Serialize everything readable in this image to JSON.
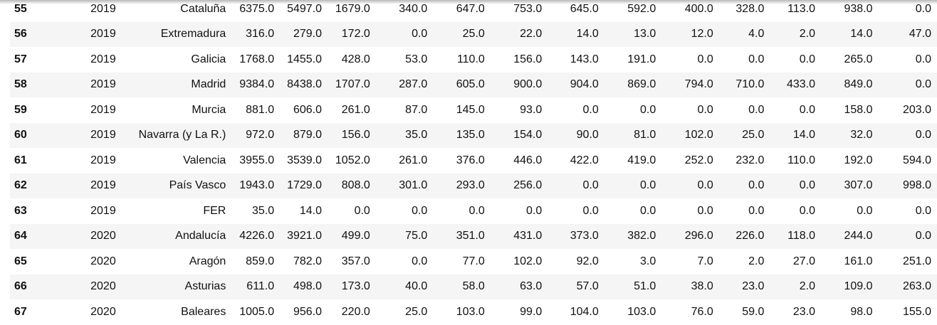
{
  "table": {
    "rows": [
      {
        "idx": "55",
        "cells": [
          "2019",
          "Cataluña",
          "6375.0",
          "5497.0",
          "1679.0",
          "340.0",
          "647.0",
          "753.0",
          "645.0",
          "592.0",
          "400.0",
          "328.0",
          "113.0",
          "938.0",
          "0.0"
        ]
      },
      {
        "idx": "56",
        "cells": [
          "2019",
          "Extremadura",
          "316.0",
          "279.0",
          "172.0",
          "0.0",
          "25.0",
          "22.0",
          "14.0",
          "13.0",
          "12.0",
          "4.0",
          "2.0",
          "14.0",
          "47.0"
        ]
      },
      {
        "idx": "57",
        "cells": [
          "2019",
          "Galicia",
          "1768.0",
          "1455.0",
          "428.0",
          "53.0",
          "110.0",
          "156.0",
          "143.0",
          "191.0",
          "0.0",
          "0.0",
          "0.0",
          "265.0",
          "0.0"
        ]
      },
      {
        "idx": "58",
        "cells": [
          "2019",
          "Madrid",
          "9384.0",
          "8438.0",
          "1707.0",
          "287.0",
          "605.0",
          "900.0",
          "904.0",
          "869.0",
          "794.0",
          "710.0",
          "433.0",
          "849.0",
          "0.0"
        ]
      },
      {
        "idx": "59",
        "cells": [
          "2019",
          "Murcia",
          "881.0",
          "606.0",
          "261.0",
          "87.0",
          "145.0",
          "93.0",
          "0.0",
          "0.0",
          "0.0",
          "0.0",
          "0.0",
          "158.0",
          "203.0"
        ]
      },
      {
        "idx": "60",
        "cells": [
          "2019",
          "Navarra (y La R.)",
          "972.0",
          "879.0",
          "156.0",
          "35.0",
          "135.0",
          "154.0",
          "90.0",
          "81.0",
          "102.0",
          "25.0",
          "14.0",
          "32.0",
          "0.0"
        ]
      },
      {
        "idx": "61",
        "cells": [
          "2019",
          "Valencia",
          "3955.0",
          "3539.0",
          "1052.0",
          "261.0",
          "376.0",
          "446.0",
          "422.0",
          "419.0",
          "252.0",
          "232.0",
          "110.0",
          "192.0",
          "594.0"
        ]
      },
      {
        "idx": "62",
        "cells": [
          "2019",
          "País Vasco",
          "1943.0",
          "1729.0",
          "808.0",
          "301.0",
          "293.0",
          "256.0",
          "0.0",
          "0.0",
          "0.0",
          "0.0",
          "0.0",
          "307.0",
          "998.0"
        ]
      },
      {
        "idx": "63",
        "cells": [
          "2019",
          "FER",
          "35.0",
          "14.0",
          "0.0",
          "0.0",
          "0.0",
          "0.0",
          "0.0",
          "0.0",
          "0.0",
          "0.0",
          "0.0",
          "0.0",
          "0.0"
        ]
      },
      {
        "idx": "64",
        "cells": [
          "2020",
          "Andalucía",
          "4226.0",
          "3921.0",
          "499.0",
          "75.0",
          "351.0",
          "431.0",
          "373.0",
          "382.0",
          "296.0",
          "226.0",
          "118.0",
          "244.0",
          "0.0"
        ]
      },
      {
        "idx": "65",
        "cells": [
          "2020",
          "Aragón",
          "859.0",
          "782.0",
          "357.0",
          "0.0",
          "77.0",
          "102.0",
          "92.0",
          "3.0",
          "7.0",
          "2.0",
          "27.0",
          "161.0",
          "251.0"
        ]
      },
      {
        "idx": "66",
        "cells": [
          "2020",
          "Asturias",
          "611.0",
          "498.0",
          "173.0",
          "40.0",
          "58.0",
          "63.0",
          "57.0",
          "51.0",
          "38.0",
          "23.0",
          "2.0",
          "109.0",
          "263.0"
        ]
      },
      {
        "idx": "67",
        "cells": [
          "2020",
          "Baleares",
          "1005.0",
          "956.0",
          "220.0",
          "25.0",
          "103.0",
          "99.0",
          "104.0",
          "103.0",
          "76.0",
          "59.0",
          "23.0",
          "98.0",
          "155.0"
        ]
      }
    ]
  }
}
